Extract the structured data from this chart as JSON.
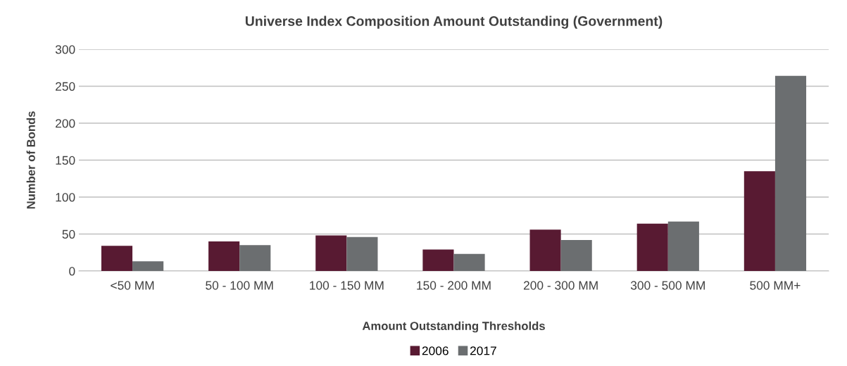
{
  "chart_data": {
    "type": "bar",
    "title": "Universe Index Composition Amount Outstanding (Government)",
    "xlabel": "Amount Outstanding Thresholds",
    "ylabel": "Number of Bonds",
    "categories": [
      "<50 MM",
      "50 - 100 MM",
      "100 - 150 MM",
      "150 - 200 MM",
      "200 - 300 MM",
      "300 - 500 MM",
      "500 MM+"
    ],
    "series": [
      {
        "name": "2006",
        "color": "#581a32",
        "values": [
          34,
          40,
          48,
          29,
          56,
          64,
          135
        ]
      },
      {
        "name": "2017",
        "color": "#6b6e70",
        "values": [
          13,
          35,
          46,
          23,
          42,
          67,
          264
        ]
      }
    ],
    "ylim": [
      0,
      300
    ],
    "yticks": [
      0,
      50,
      100,
      150,
      200,
      250,
      300
    ],
    "grid": "y",
    "legend": "bottom"
  }
}
